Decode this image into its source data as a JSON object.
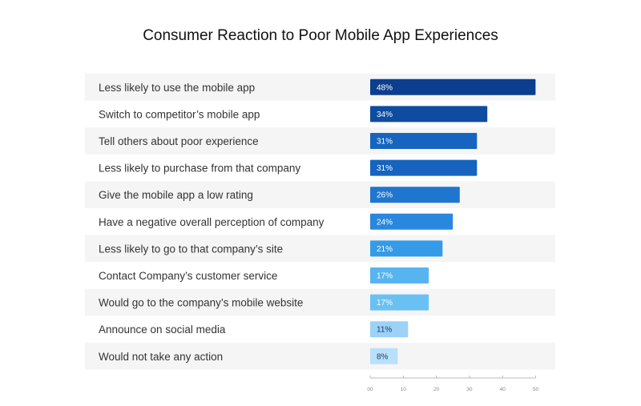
{
  "chart_data": {
    "type": "bar",
    "orientation": "horizontal",
    "title": "Consumer Reaction to Poor Mobile App Experiences",
    "categories": [
      "Less likely to use the mobile app",
      "Switch to competitor’s mobile app",
      "Tell others about poor experience",
      "Less likely to purchase from that company",
      "Give the mobile app a low rating",
      "Have a negative overall perception of company",
      "Less likely to go to that company’s site",
      "Contact Company’s customer service",
      "Would go to the company’s mobile website",
      "Announce on social media",
      "Would not take any action"
    ],
    "values": [
      48,
      34,
      31,
      31,
      26,
      24,
      21,
      17,
      17,
      11,
      8
    ],
    "value_labels": [
      "48%",
      "34%",
      "31%",
      "31%",
      "26%",
      "24%",
      "21%",
      "17%",
      "17%",
      "11%",
      "8%"
    ],
    "bar_colors": [
      "#0b3e8e",
      "#0d4c9f",
      "#1664bf",
      "#1664bf",
      "#1f76cf",
      "#2a87de",
      "#359be8",
      "#58b4f0",
      "#6ac0f3",
      "#9cd2f8",
      "#b9e0fb"
    ],
    "bar_label_colors": [
      "#ffffff",
      "#ffffff",
      "#ffffff",
      "#ffffff",
      "#ffffff",
      "#ffffff",
      "#ffffff",
      "#ffffff",
      "#ffffff",
      "#1a3a66",
      "#1a3a66"
    ],
    "xticks": [
      "00",
      "10",
      "20",
      "30",
      "40",
      "50"
    ],
    "xlim": [
      0,
      50
    ],
    "xlabel": "",
    "ylabel": "",
    "grid": false,
    "row_band_colors": [
      "#f5f5f5",
      "#ffffff"
    ]
  }
}
